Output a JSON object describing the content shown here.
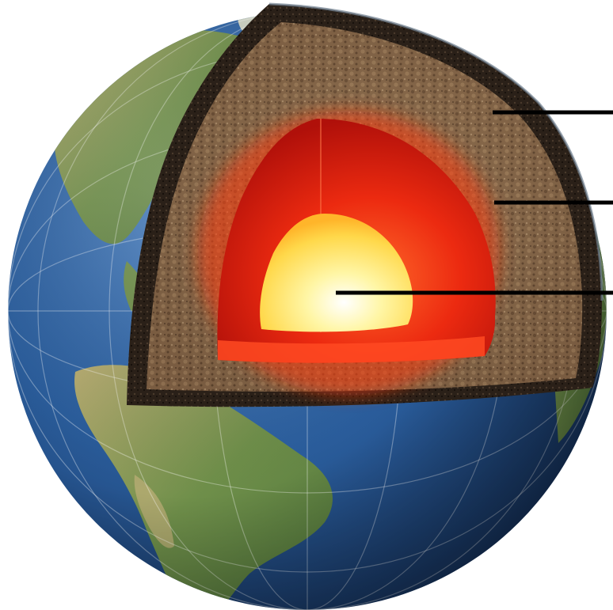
{
  "diagram": {
    "subject": "earth-interior-cutaway",
    "layers": [
      {
        "key": "crust"
      },
      {
        "key": "mantle"
      },
      {
        "key": "inner-core"
      }
    ],
    "labels": []
  },
  "colors": {
    "ocean": "#2a5d9c",
    "ocean_dark": "#1a3c6e",
    "land": "#6f8f4a",
    "land_light": "#a8a56a",
    "crust": "#2a2018",
    "mantle": "#8a6a4c",
    "outer_core": "#e8200c",
    "inner_core": "#ffee80",
    "leader_line": "#000000"
  }
}
